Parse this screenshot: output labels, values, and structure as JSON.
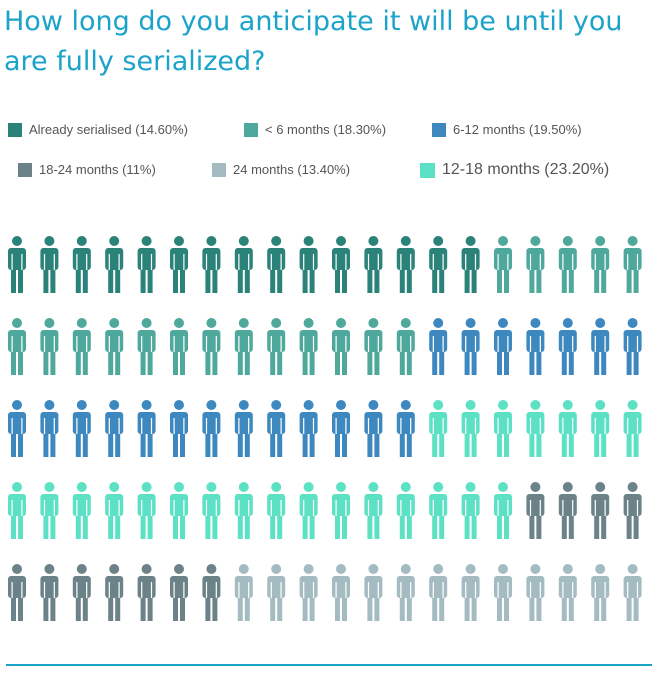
{
  "chart_data": {
    "type": "pictograph",
    "title": "How long do you anticipate it will be until you are fully serialized?",
    "total_icons": 100,
    "icons_per_row": 20,
    "series": [
      {
        "name": "Already serialised (14.60%)",
        "label": "Already serialised",
        "percent": 14.6,
        "icons": 15,
        "color": "#2a8279"
      },
      {
        "name": "< 6 months (18.30%)",
        "label": "< 6 months",
        "percent": 18.3,
        "icons": 18,
        "color": "#4ea89b"
      },
      {
        "name": "6-12 months (19.50%)",
        "label": "6-12 months",
        "percent": 19.5,
        "icons": 20,
        "color": "#3e88c0"
      },
      {
        "name": "12-18 months (23.20%)",
        "label": "12-18 months",
        "percent": 23.2,
        "icons": 23,
        "color": "#5ce1c4"
      },
      {
        "name": "18-24 months (11%)",
        "label": "18-24 months",
        "percent": 11,
        "icons": 11,
        "color": "#6b8388"
      },
      {
        "name": "24 months (13.40%)",
        "label": "24 months",
        "percent": 13.4,
        "icons": 13,
        "color": "#a4bcc1"
      }
    ]
  },
  "legend": {
    "items": [
      {
        "text": "Already serialised (14.60%)",
        "color": "#2a8279"
      },
      {
        "text": "< 6 months (18.30%)",
        "color": "#4ea89b"
      },
      {
        "text": "6-12 months (19.50%)",
        "color": "#3e88c0"
      },
      {
        "text": "18-24 months (11%)",
        "color": "#6b8388"
      },
      {
        "text": "24 months (13.40%)",
        "color": "#a4bcc1"
      },
      {
        "text": "12-18 months (23.20%)",
        "color": "#5ce1c4"
      }
    ]
  },
  "accent_color": "#1ba3c9",
  "icon_names": [
    "person-icon"
  ]
}
